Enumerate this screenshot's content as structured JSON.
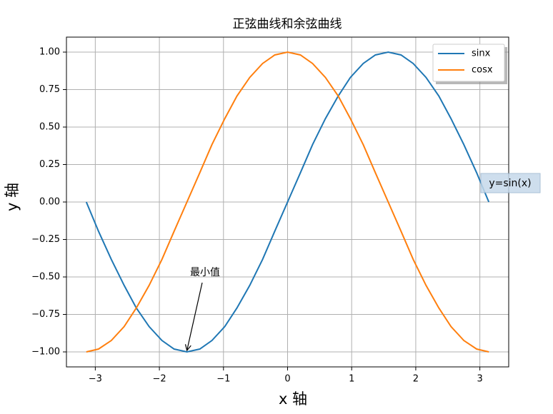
{
  "chart_data": {
    "type": "line",
    "title": "正弦曲线和余弦曲线",
    "x_label": "x 轴",
    "y_label": "y 轴",
    "x": [
      -3.14,
      -2.95,
      -2.75,
      -2.55,
      -2.36,
      -2.16,
      -1.96,
      -1.77,
      -1.57,
      -1.37,
      -1.18,
      -0.98,
      -0.79,
      -0.59,
      -0.39,
      -0.2,
      0,
      0.2,
      0.39,
      0.59,
      0.79,
      0.98,
      1.18,
      1.37,
      1.57,
      1.77,
      1.96,
      2.16,
      2.36,
      2.55,
      2.75,
      2.95,
      3.14
    ],
    "series": [
      {
        "name": "sinx",
        "color": "#1f77b4",
        "values": [
          0,
          -0.195,
          -0.383,
          -0.556,
          -0.707,
          -0.831,
          -0.924,
          -0.981,
          -1,
          -0.981,
          -0.924,
          -0.831,
          -0.707,
          -0.556,
          -0.383,
          -0.195,
          0,
          0.195,
          0.383,
          0.556,
          0.707,
          0.831,
          0.924,
          0.981,
          1,
          0.981,
          0.924,
          0.831,
          0.707,
          0.556,
          0.383,
          0.195,
          0
        ]
      },
      {
        "name": "cosx",
        "color": "#ff7f0e",
        "values": [
          -1,
          -0.981,
          -0.924,
          -0.831,
          -0.707,
          -0.556,
          -0.383,
          -0.195,
          0,
          0.195,
          0.383,
          0.556,
          0.707,
          0.831,
          0.924,
          0.981,
          1,
          0.981,
          0.924,
          0.831,
          0.707,
          0.556,
          0.383,
          0.195,
          0,
          -0.195,
          -0.383,
          -0.556,
          -0.707,
          -0.831,
          -0.924,
          -0.981,
          -1
        ]
      }
    ],
    "xlim": [
      -3.45,
      3.45
    ],
    "ylim": [
      -1.1,
      1.1
    ],
    "xticks": [
      {
        "value": -3,
        "label": "−3"
      },
      {
        "value": -2,
        "label": "−2"
      },
      {
        "value": -1,
        "label": "−1"
      },
      0,
      1,
      2,
      3
    ],
    "yticks": [
      {
        "value": -1,
        "label": "−1.00"
      },
      {
        "value": -0.75,
        "label": "−0.75"
      },
      {
        "value": -0.5,
        "label": "−0.50"
      },
      {
        "value": -0.25,
        "label": "−0.25"
      },
      {
        "value": 0,
        "label": "0.00"
      },
      {
        "value": 0.25,
        "label": "0.25"
      },
      {
        "value": 0.5,
        "label": "0.50"
      },
      {
        "value": 0.75,
        "label": "0.75"
      },
      {
        "value": 1,
        "label": "1.00"
      }
    ],
    "grid": true,
    "legend": "upper right",
    "annotations": [
      {
        "text": "最小值",
        "xy": [
          -1.57,
          -1
        ]
      },
      {
        "text": "y=sin(x)"
      }
    ]
  }
}
